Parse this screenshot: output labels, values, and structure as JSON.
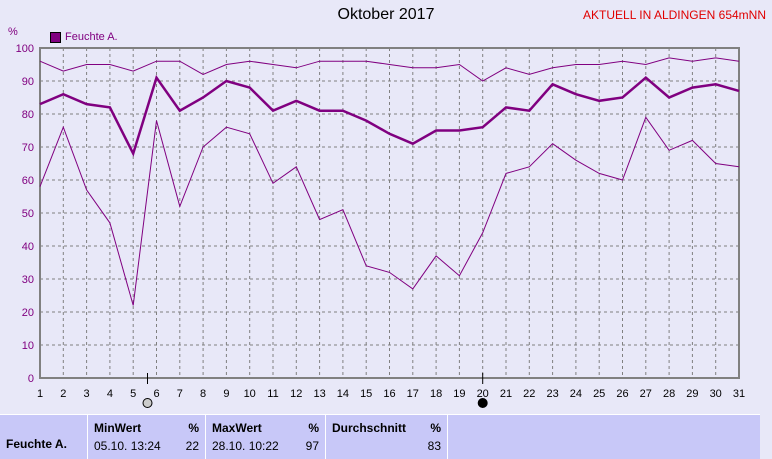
{
  "title": "Oktober 2017",
  "aktuell": "AKTUELL IN ALDINGEN 654mNN",
  "chart_data": {
    "type": "line",
    "ylabel": "%",
    "ylim": [
      0,
      100
    ],
    "yticks": [
      0,
      10,
      20,
      30,
      40,
      50,
      60,
      70,
      80,
      90,
      100
    ],
    "x": [
      1,
      2,
      3,
      4,
      5,
      6,
      7,
      8,
      9,
      10,
      11,
      12,
      13,
      14,
      15,
      16,
      17,
      18,
      19,
      20,
      21,
      22,
      23,
      24,
      25,
      26,
      27,
      28,
      29,
      30,
      31
    ],
    "grid": true,
    "legend": "top-left",
    "legend_label": "Feuchte A.",
    "color": "#800080",
    "series": [
      {
        "values": [
          96,
          93,
          95,
          95,
          93,
          96,
          96,
          92,
          95,
          96,
          95,
          94,
          96,
          96,
          96,
          95,
          94,
          94,
          95,
          90,
          94,
          92,
          94,
          95,
          95,
          96,
          95,
          97,
          96,
          97,
          96
        ]
      },
      {
        "values": [
          83,
          86,
          83,
          82,
          68,
          91,
          81,
          85,
          90,
          88,
          81,
          84,
          81,
          81,
          78,
          74,
          71,
          75,
          75,
          76,
          82,
          81,
          89,
          86,
          84,
          85,
          91,
          85,
          88,
          89,
          87
        ]
      },
      {
        "values": [
          58,
          76,
          57,
          47,
          22,
          78,
          52,
          70,
          76,
          74,
          59,
          64,
          48,
          51,
          34,
          32,
          27,
          37,
          31,
          44,
          62,
          64,
          71,
          66,
          62,
          60,
          79,
          69,
          72,
          65,
          64
        ]
      }
    ],
    "moon_markers": [
      {
        "day": 6,
        "phase": "full-moon"
      },
      {
        "day": 20,
        "phase": "new-moon"
      }
    ]
  },
  "table": {
    "row_label": "Feuchte A.",
    "min": {
      "header": "MinWert",
      "unit": "%",
      "time": "05.10.  13:24",
      "value": "22"
    },
    "max": {
      "header": "MaxWert",
      "unit": "%",
      "time": "28.10.  10:22",
      "value": "97"
    },
    "avg": {
      "header": "Durchschnitt",
      "unit": "%",
      "value": "83"
    }
  }
}
